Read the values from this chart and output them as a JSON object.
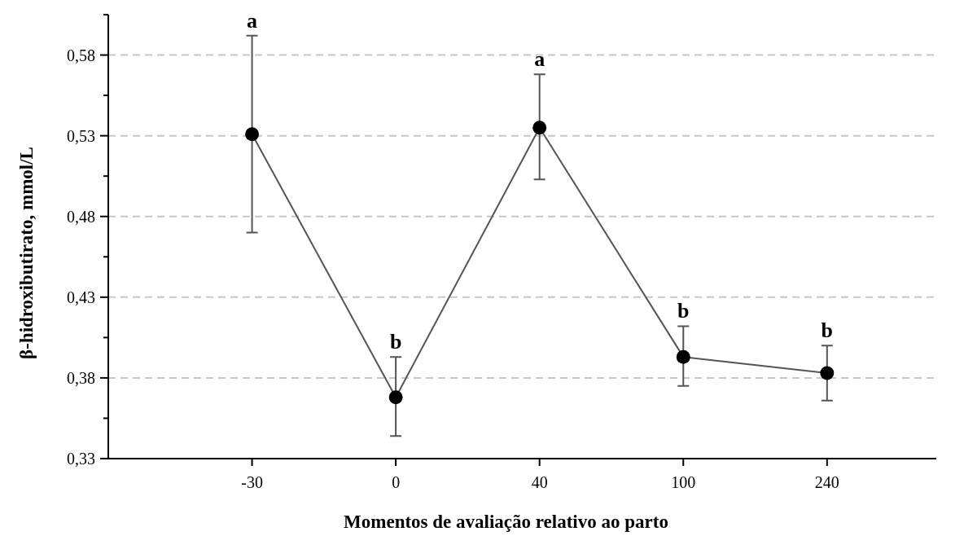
{
  "chart_data": {
    "type": "line",
    "xlabel": "Momentos de avaliação relativo ao parto",
    "ylabel": "β-hidroxibutirato, mmol/L",
    "categories": [
      "-30",
      "0",
      "40",
      "100",
      "240"
    ],
    "series": [
      {
        "color": "#000000",
        "values": [
          0.531,
          0.368,
          0.535,
          0.393,
          0.383
        ],
        "errors": [
          [
            0.47,
            0.592
          ],
          [
            0.344,
            0.393
          ],
          [
            0.503,
            0.568
          ],
          [
            0.375,
            0.412
          ],
          [
            0.366,
            0.4
          ]
        ]
      }
    ],
    "ylim": [
      0.33,
      0.605
    ],
    "yticks": [
      {
        "value": 0.33,
        "label": "0,33"
      },
      {
        "value": 0.355,
        "label": null
      },
      {
        "value": 0.38,
        "label": "0,38"
      },
      {
        "value": 0.405,
        "label": null
      },
      {
        "value": 0.43,
        "label": "0,43"
      },
      {
        "value": 0.455,
        "label": null
      },
      {
        "value": 0.48,
        "label": "0,48"
      },
      {
        "value": 0.505,
        "label": null
      },
      {
        "value": 0.53,
        "label": "0,53"
      },
      {
        "value": 0.555,
        "label": null
      },
      {
        "value": 0.58,
        "label": "0,58"
      },
      {
        "value": 0.605,
        "label": null
      }
    ],
    "grid": "y",
    "marker": "circle",
    "line_style": "solid",
    "annotations": [
      {
        "text": "a",
        "x": "-30",
        "y": 0.592
      },
      {
        "text": "b",
        "x": "0",
        "y": 0.393
      },
      {
        "text": "a",
        "x": "40",
        "y": 0.568
      },
      {
        "text": "b",
        "x": "100",
        "y": 0.412
      },
      {
        "text": "b",
        "x": "240",
        "y": 0.4
      }
    ]
  }
}
